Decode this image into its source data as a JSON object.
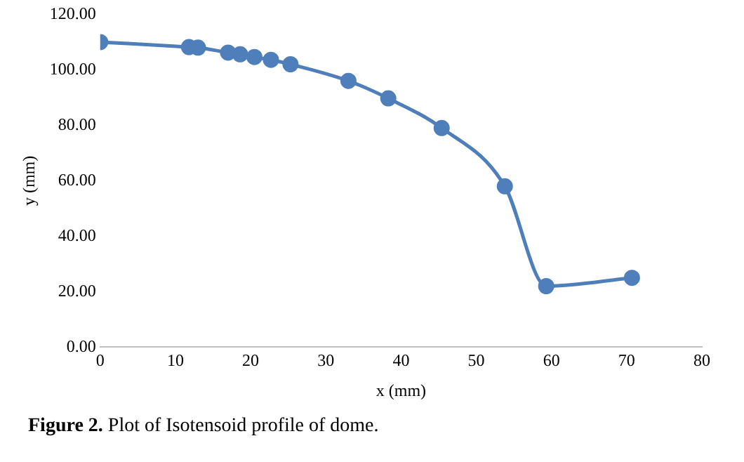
{
  "chart_data": {
    "type": "line",
    "xlabel": "x (mm)",
    "ylabel": "y (mm)",
    "annotations": [
      "Figure 2. Plot of Isotensoid profile of dome."
    ],
    "x": [
      0,
      11.8,
      13,
      17,
      18.6,
      20.5,
      22.7,
      25.3,
      33,
      38.3,
      45.4,
      53.8,
      59.3,
      70.7
    ],
    "series": [
      {
        "color": "#4f7fbb",
        "values": [
          110,
          108.2,
          108,
          106.2,
          105.6,
          104.6,
          103.6,
          102,
          96,
          89.7,
          79,
          58,
          22,
          25
        ]
      }
    ],
    "xlim": [
      0,
      80
    ],
    "xticks": [
      0,
      10,
      20,
      30,
      40,
      50,
      60,
      70,
      80
    ],
    "ylim": [
      0,
      120
    ],
    "yticks": [
      {
        "value": 0,
        "label": "0.00"
      },
      {
        "value": 20,
        "label": "20.00"
      },
      {
        "value": 40,
        "label": "40.00"
      },
      {
        "value": 60,
        "label": "60.00"
      },
      {
        "value": 80,
        "label": "80.00"
      },
      {
        "value": 100,
        "label": "100.00"
      },
      {
        "value": 120,
        "label": "120.00"
      }
    ],
    "grid": false,
    "legend": false,
    "marker": "circle",
    "line_style": "solid"
  }
}
